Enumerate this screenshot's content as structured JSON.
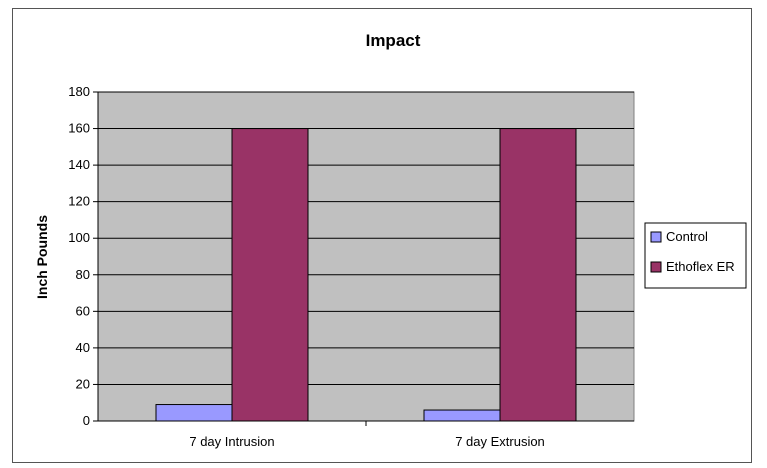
{
  "chart_data": {
    "type": "bar",
    "title": "Impact",
    "xlabel": "",
    "ylabel": "Inch Pounds",
    "categories": [
      "7 day Intrusion",
      "7 day Extrusion"
    ],
    "series": [
      {
        "name": "Control",
        "values": [
          9,
          6
        ],
        "color": "#9999ff"
      },
      {
        "name": "Ethoflex ER",
        "values": [
          160,
          160
        ],
        "color": "#993366"
      }
    ],
    "ylim": [
      0,
      180
    ],
    "yticks": [
      0,
      20,
      40,
      60,
      80,
      100,
      120,
      140,
      160,
      180
    ],
    "grid": true,
    "plot_background": "#c0c0c0",
    "legend_position": "right"
  }
}
